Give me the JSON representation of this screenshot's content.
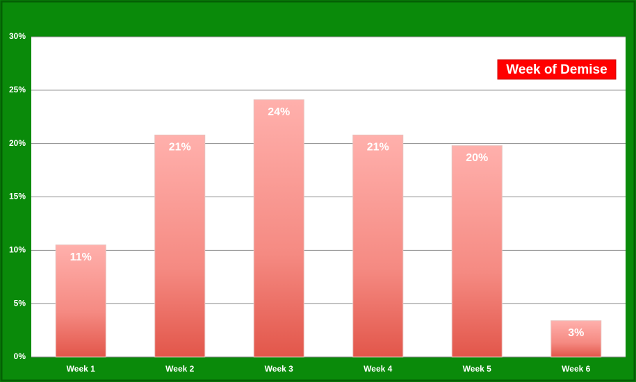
{
  "chart_data": {
    "type": "bar",
    "title": "Week of Demise",
    "categories": [
      "Week 1",
      "Week 2",
      "Week 3",
      "Week 4",
      "Week 5",
      "Week 6"
    ],
    "values": [
      10.5,
      20.8,
      24.1,
      20.8,
      19.8,
      3.4
    ],
    "value_labels": [
      "11%",
      "21%",
      "24%",
      "21%",
      "20%",
      "3%"
    ],
    "color": "#f07870",
    "ylim": [
      0,
      30
    ],
    "yticks": [
      {
        "value": 0,
        "label": "0%"
      },
      {
        "value": 5,
        "label": "5%"
      },
      {
        "value": 10,
        "label": "10%"
      },
      {
        "value": 15,
        "label": "15%"
      },
      {
        "value": 20,
        "label": "20%"
      },
      {
        "value": 25,
        "label": "25%"
      },
      {
        "value": 30,
        "label": "30%"
      }
    ],
    "grid": true
  }
}
